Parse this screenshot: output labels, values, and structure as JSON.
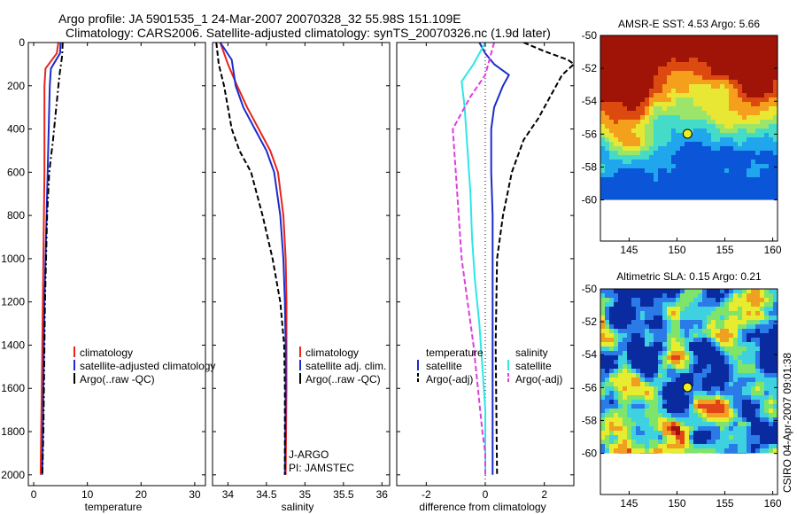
{
  "title": {
    "line1": "Argo profile: JA 5901535_1 24-Mar-2007 20070328_32 55.98S 151.109E",
    "line2": "Climatology: CARS2006. Satellite-adjusted climatology: synTS_20070326.nc (1.9d later)"
  },
  "colors": {
    "climatology": "#e8241c",
    "satellite": "#1c2ccc",
    "argo": "#000000",
    "satellite_salinity": "#2ee6e6",
    "argo_salinity": "#e03ce0",
    "marker": "#f0f020",
    "blank": "#ffffff"
  },
  "chart_data": [
    {
      "type": "line",
      "name": "temperature",
      "xlabel": "temperature",
      "ylabel": "",
      "xlim": [
        -1,
        32
      ],
      "ylim": [
        2050,
        0
      ],
      "xticks": [
        0,
        10,
        20,
        30
      ],
      "xtick_labels": [
        "0",
        "10",
        "20",
        "30"
      ],
      "yticks": [
        0,
        200,
        400,
        600,
        800,
        1000,
        1200,
        1400,
        1600,
        1800,
        2000
      ],
      "ytick_labels": [
        "0",
        "200",
        "400",
        "600",
        "800",
        "1000",
        "1200",
        "1400",
        "1600",
        "1800",
        "2000"
      ],
      "legend": [
        "climatology",
        "satellite-adjusted climatology",
        "Argo(..raw -QC)"
      ],
      "series": [
        {
          "name": "climatology",
          "style": "solid",
          "color_key": "climatology",
          "x": [
            4.6,
            4.3,
            2.2,
            2.0,
            2.0,
            2.0,
            1.9,
            1.8,
            1.7,
            1.6,
            1.5,
            1.4,
            1.3
          ],
          "y": [
            0,
            50,
            120,
            200,
            400,
            600,
            800,
            1000,
            1200,
            1400,
            1600,
            1800,
            2000
          ]
        },
        {
          "name": "satellite-adjusted climatology",
          "style": "solid",
          "color_key": "satellite",
          "x": [
            5.0,
            4.9,
            3.2,
            3.0,
            2.8,
            2.6,
            2.4,
            2.2,
            2.0,
            1.9,
            1.8,
            1.7,
            1.6
          ],
          "y": [
            0,
            50,
            120,
            200,
            400,
            600,
            800,
            1000,
            1200,
            1400,
            1600,
            1800,
            2000
          ]
        },
        {
          "name": "Argo(..raw -QC)",
          "style": "dashdot",
          "color_key": "argo",
          "x": [
            5.4,
            5.3,
            4.8,
            4.2,
            3.6,
            2.9,
            2.5,
            2.3,
            2.1,
            2.0,
            1.9,
            1.8,
            1.7,
            1.6
          ],
          "y": [
            0,
            60,
            150,
            300,
            450,
            600,
            800,
            1000,
            1200,
            1400,
            1600,
            1800,
            1900,
            2000
          ]
        }
      ]
    },
    {
      "type": "line",
      "name": "salinity",
      "xlabel": "salinity",
      "xlim": [
        33.8,
        36.1
      ],
      "ylim": [
        2050,
        0
      ],
      "xticks": [
        34,
        34.5,
        35,
        35.5,
        36
      ],
      "xtick_labels": [
        "34",
        "34.5",
        "35",
        "35.5",
        "36"
      ],
      "legend": [
        "climatology",
        "satellite adj. clim.",
        "Argo(..raw -QC)"
      ],
      "annotation": [
        "J-ARGO",
        "PI: JAMSTEC"
      ],
      "series": [
        {
          "name": "climatology",
          "style": "solid",
          "color_key": "climatology",
          "x": [
            33.9,
            34.0,
            34.12,
            34.25,
            34.4,
            34.55,
            34.65,
            34.72,
            34.75,
            34.76,
            34.76,
            34.76,
            34.75
          ],
          "y": [
            0,
            100,
            200,
            300,
            400,
            500,
            600,
            800,
            1000,
            1200,
            1400,
            1600,
            2000
          ]
        },
        {
          "name": "satellite adj. clim.",
          "style": "solid",
          "color_key": "satellite",
          "x": [
            33.9,
            34.05,
            34.1,
            34.2,
            34.35,
            34.5,
            34.6,
            34.68,
            34.72,
            34.74,
            34.75,
            34.75,
            34.74
          ],
          "y": [
            0,
            80,
            200,
            300,
            400,
            500,
            600,
            800,
            1000,
            1200,
            1400,
            1600,
            2000
          ]
        },
        {
          "name": "Argo(..raw -QC)",
          "style": "dashed",
          "color_key": "argo",
          "x": [
            33.85,
            33.88,
            33.95,
            34.0,
            34.05,
            34.15,
            34.3,
            34.45,
            34.58,
            34.68,
            34.73,
            34.74,
            34.74
          ],
          "y": [
            0,
            100,
            200,
            300,
            400,
            500,
            600,
            800,
            1000,
            1200,
            1400,
            1600,
            2000
          ]
        }
      ]
    },
    {
      "type": "line",
      "name": "difference",
      "xlabel": "difference from climatology",
      "xlim": [
        -3,
        3
      ],
      "ylim": [
        2050,
        0
      ],
      "xticks": [
        -2,
        0,
        2
      ],
      "xtick_labels": [
        "-2",
        "0",
        "2"
      ],
      "legend_temperature": [
        "temperature",
        "satellite",
        "Argo(-adj)"
      ],
      "legend_salinity": [
        "salinity",
        "satellite",
        "Argo(-adj)"
      ],
      "series": [
        {
          "name": "temperature satellite",
          "style": "solid",
          "color_key": "satellite",
          "x": [
            -0.2,
            0.0,
            0.3,
            0.8,
            0.6,
            0.3,
            0.2,
            0.2,
            0.25,
            0.25,
            0.25,
            0.25,
            0.25
          ],
          "y": [
            0,
            50,
            100,
            150,
            200,
            300,
            400,
            600,
            800,
            1000,
            1400,
            1800,
            2000
          ]
        },
        {
          "name": "temperature Argo(-adj)",
          "style": "dashed",
          "color_key": "argo",
          "x": [
            1.3,
            2.0,
            2.8,
            3.0,
            2.6,
            2.2,
            1.8,
            1.3,
            0.9,
            0.6,
            0.4,
            0.35,
            0.4
          ],
          "y": [
            0,
            40,
            80,
            100,
            150,
            250,
            350,
            450,
            600,
            800,
            1000,
            1400,
            2000
          ]
        },
        {
          "name": "salinity satellite",
          "style": "solid",
          "color_key": "satellite_salinity",
          "x": [
            0.0,
            -0.4,
            -0.8,
            -0.7,
            -0.6,
            -0.5,
            -0.45,
            -0.35,
            -0.2,
            -0.1,
            0.0,
            0.0,
            0.0
          ],
          "y": [
            0,
            100,
            180,
            300,
            500,
            700,
            900,
            1100,
            1300,
            1500,
            1700,
            1900,
            2000
          ]
        },
        {
          "name": "salinity Argo(-adj)",
          "style": "dashed",
          "color_key": "argo_salinity",
          "x": [
            0.3,
            0.0,
            -0.5,
            -1.1,
            -1.0,
            -0.9,
            -0.8,
            -0.6,
            -0.4,
            -0.25,
            -0.1,
            0.0,
            0.0
          ],
          "y": [
            0,
            150,
            250,
            400,
            600,
            800,
            1000,
            1200,
            1400,
            1600,
            1800,
            1900,
            2000
          ]
        }
      ]
    },
    {
      "type": "heatmap",
      "name": "sst-map",
      "title": "AMSR-E SST: 4.53 Argo: 5.66",
      "xlim": [
        142,
        160.5
      ],
      "ylim": [
        -62.5,
        -50
      ],
      "xticks": [
        145,
        150,
        155,
        160
      ],
      "xtick_labels": [
        "145",
        "150",
        "155",
        "160"
      ],
      "yticks": [
        -50,
        -52,
        -54,
        -56,
        -58,
        -60
      ],
      "ytick_labels": [
        "-50",
        "-52",
        "-54",
        "-56",
        "-58",
        "-60"
      ],
      "data_extent_lat": [
        -60,
        -50
      ],
      "argo_position": {
        "lon": 151.1,
        "lat": -55.98
      },
      "palette": [
        "#0b56d8",
        "#1fa6ec",
        "#44dcc8",
        "#9be66a",
        "#e8e834",
        "#f4a01c",
        "#dc4a10",
        "#a01408"
      ]
    },
    {
      "type": "heatmap",
      "name": "sla-map",
      "title": "Altimetric SLA: 0.15 Argo: 0.21",
      "xlim": [
        142,
        160.5
      ],
      "ylim": [
        -62.5,
        -50
      ],
      "xticks": [
        145,
        150,
        155,
        160
      ],
      "xtick_labels": [
        "145",
        "150",
        "155",
        "160"
      ],
      "yticks": [
        -50,
        -52,
        -54,
        -56,
        -58,
        -60
      ],
      "ytick_labels": [
        "-50",
        "-52",
        "-54",
        "-56",
        "-58",
        "-60"
      ],
      "data_extent_lat": [
        -60,
        -50
      ],
      "argo_position": {
        "lon": 151.1,
        "lat": -55.98
      },
      "palette": [
        "#0a2aa0",
        "#2a7ae8",
        "#3ed2e0",
        "#7ee46a",
        "#e8ec30",
        "#f0a020",
        "#e04418",
        "#a01010"
      ]
    }
  ],
  "footer": "CSIRO 04-Apr-2007 09:01:38"
}
